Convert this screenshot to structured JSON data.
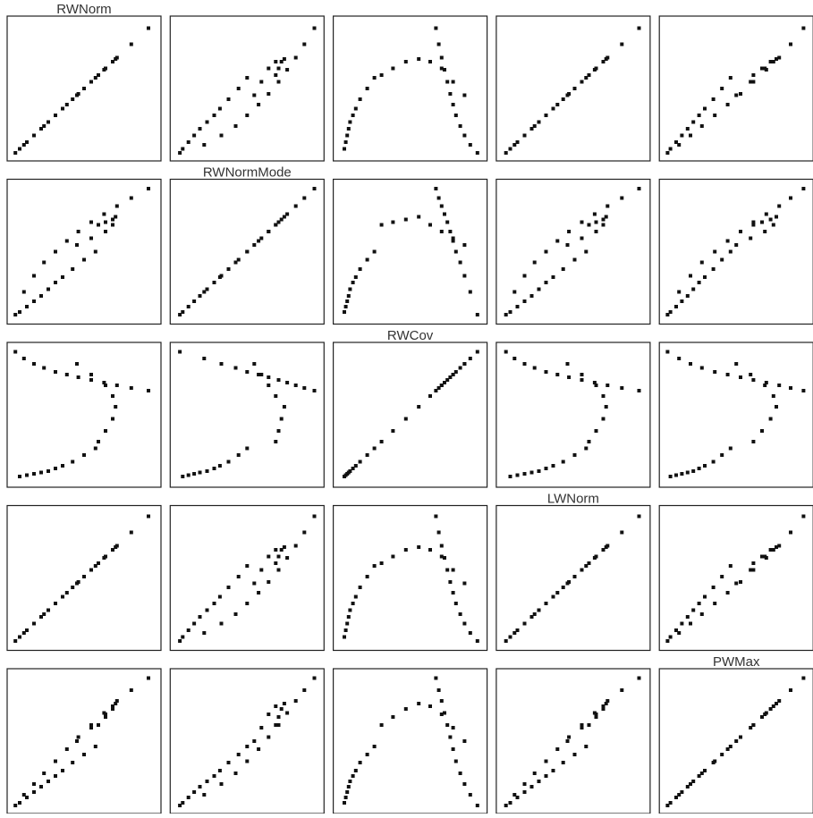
{
  "chart_data": {
    "type": "scatter-matrix",
    "color": "#111111",
    "variables": [
      {
        "name": "RWNorm",
        "lim": [
          0,
          1
        ],
        "values": [
          0.02,
          0.08,
          0.15,
          0.22,
          0.3,
          0.38,
          0.46,
          0.55,
          0.64,
          0.73,
          0.83,
          0.95,
          0.05,
          0.1,
          0.15,
          0.2,
          0.25,
          0.3,
          0.35,
          0.42,
          0.5,
          0.58,
          0.6,
          0.65,
          0.7,
          0.72,
          0.7,
          0.65,
          0.55,
          0.45
        ]
      },
      {
        "name": "RWNormMode",
        "lim": [
          0,
          1
        ],
        "values": [
          0.03,
          0.2,
          0.32,
          0.42,
          0.5,
          0.58,
          0.65,
          0.72,
          0.78,
          0.84,
          0.9,
          0.97,
          0.05,
          0.09,
          0.13,
          0.17,
          0.22,
          0.27,
          0.31,
          0.37,
          0.44,
          0.5,
          0.7,
          0.72,
          0.74,
          0.76,
          0.7,
          0.65,
          0.6,
          0.55
        ]
      },
      {
        "name": "RWCov",
        "lim": [
          0,
          1
        ],
        "values": [
          0.97,
          0.92,
          0.88,
          0.85,
          0.82,
          0.8,
          0.78,
          0.76,
          0.74,
          0.72,
          0.7,
          0.68,
          0.04,
          0.05,
          0.06,
          0.07,
          0.08,
          0.1,
          0.12,
          0.15,
          0.2,
          0.25,
          0.3,
          0.38,
          0.47,
          0.56,
          0.64,
          0.72,
          0.8,
          0.88
        ]
      },
      {
        "name": "LWNorm",
        "lim": [
          0,
          1
        ],
        "values": [
          0.03,
          0.09,
          0.16,
          0.23,
          0.31,
          0.39,
          0.47,
          0.56,
          0.65,
          0.74,
          0.84,
          0.96,
          0.06,
          0.11,
          0.16,
          0.21,
          0.26,
          0.31,
          0.36,
          0.43,
          0.51,
          0.59,
          0.61,
          0.66,
          0.71,
          0.73,
          0.71,
          0.66,
          0.56,
          0.46
        ]
      },
      {
        "name": "PWMax",
        "lim": [
          0,
          1
        ],
        "values": [
          0.02,
          0.1,
          0.18,
          0.26,
          0.35,
          0.44,
          0.53,
          0.62,
          0.71,
          0.8,
          0.88,
          0.97,
          0.04,
          0.08,
          0.12,
          0.16,
          0.2,
          0.24,
          0.28,
          0.34,
          0.4,
          0.46,
          0.62,
          0.68,
          0.74,
          0.78,
          0.76,
          0.7,
          0.6,
          0.5
        ]
      }
    ]
  }
}
